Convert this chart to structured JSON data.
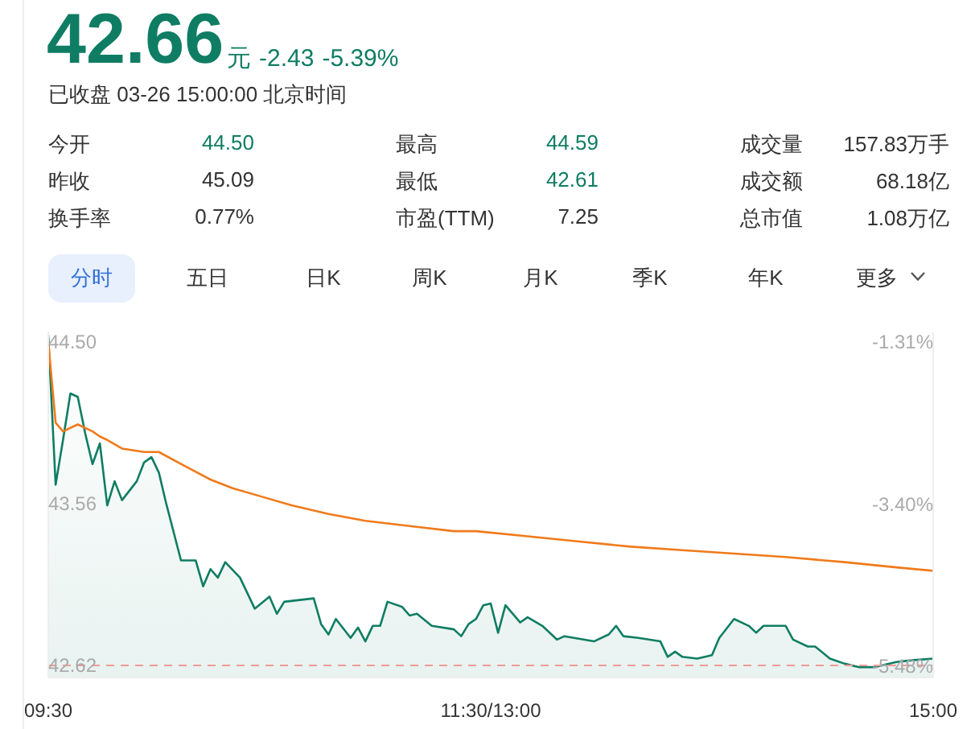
{
  "chart_data": {
    "type": "area",
    "title": "42.66",
    "subtitle": "已收盘 03-26 15:00:00 北京时间",
    "annotations": [
      "元",
      "-2.43",
      "-5.39%",
      "今开",
      "44.50",
      "最高",
      "44.59",
      "成交量",
      "157.83万手",
      "昨收",
      "45.09",
      "最低",
      "42.61",
      "成交额",
      "68.18亿",
      "换手率",
      "0.77%",
      "市盈(TTM)",
      "7.25",
      "总市值",
      "1.08万亿",
      "分时",
      "五日",
      "日K",
      "周K",
      "月K",
      "季K",
      "年K",
      "更多"
    ],
    "categories": [
      "09:30",
      null,
      null,
      null,
      null,
      null,
      null,
      null,
      null,
      null,
      null,
      null,
      null,
      null,
      null,
      null,
      null,
      null,
      null,
      null,
      null,
      null,
      null,
      null,
      null,
      null,
      null,
      null,
      null,
      null,
      null,
      null,
      null,
      null,
      null,
      null,
      null,
      null,
      null,
      null,
      null,
      null,
      null,
      null,
      null,
      null,
      null,
      null,
      null,
      null,
      null,
      null,
      null,
      null,
      null,
      null,
      null,
      null,
      null,
      null,
      "11:30/13:00",
      null,
      null,
      null,
      null,
      null,
      null,
      null,
      null,
      null,
      null,
      null,
      null,
      null,
      null,
      null,
      null,
      null,
      null,
      null,
      null,
      null,
      null,
      null,
      null,
      null,
      null,
      null,
      null,
      null,
      null,
      null,
      null,
      null,
      null,
      null,
      null,
      null,
      null,
      null,
      null,
      null,
      null,
      null,
      null,
      null,
      null,
      null,
      null,
      null,
      null,
      null,
      null,
      null,
      null,
      null,
      null,
      null,
      null,
      null,
      "15:00"
    ],
    "ylim": [
      42.55,
      44.56
    ],
    "yticks": [
      {
        "value": 44.5,
        "label": "44.50"
      },
      43.56,
      42.62
    ],
    "y2lim": [
      -5.63,
      -1.18
    ],
    "y2ticks": [
      {
        "value": -1.31,
        "label": "-1.31%"
      },
      {
        "value": -3.4,
        "label": "-3.40%"
      },
      {
        "value": -5.48,
        "label": "-5.48%"
      }
    ],
    "grid": false,
    "marker": "none",
    "line_style": "solid",
    "ref_lines": [
      {
        "axis": "y",
        "value": 42.62,
        "color": "#f29a96",
        "line_style": "dashed"
      }
    ],
    "series": [
      {
        "color": "#0f7d63",
        "values": [
          44.54,
          43.67,
          43.93,
          44.2,
          44.18,
          43.97,
          43.79,
          43.91,
          43.55,
          43.69,
          43.58,
          null,
          43.69,
          43.8,
          43.83,
          43.74,
          43.56,
          null,
          43.23,
          null,
          43.23,
          43.08,
          43.18,
          43.13,
          43.22,
          null,
          43.13,
          null,
          42.95,
          null,
          43.02,
          42.92,
          42.99,
          null,
          null,
          null,
          43.01,
          42.86,
          42.8,
          42.89,
          null,
          42.78,
          42.84,
          42.76,
          42.85,
          42.85,
          42.99,
          null,
          42.96,
          42.91,
          42.92,
          null,
          42.85,
          null,
          null,
          42.83,
          42.79,
          42.86,
          42.89,
          42.97,
          42.98,
          42.81,
          42.97,
          42.92,
          42.87,
          42.9,
          null,
          42.85,
          null,
          42.77,
          42.79,
          null,
          null,
          null,
          42.76,
          null,
          42.8,
          42.85,
          42.79,
          null,
          42.78,
          null,
          null,
          42.76,
          42.67,
          42.7,
          42.67,
          null,
          42.66,
          null,
          42.68,
          42.78,
          null,
          42.89,
          null,
          42.85,
          42.81,
          42.85,
          null,
          null,
          42.85,
          42.77,
          null,
          42.73,
          42.73,
          null,
          42.66,
          null,
          42.63,
          null,
          42.61,
          null,
          42.61,
          42.62,
          null,
          42.64,
          null,
          42.65,
          null,
          null,
          42.66
        ]
      },
      {
        "type": "line",
        "color": "#f07a1a",
        "values": [
          44.5,
          44.03,
          43.98,
          null,
          44.02,
          null,
          43.98,
          43.95,
          43.93,
          null,
          43.88,
          null,
          null,
          43.86,
          null,
          43.86,
          null,
          null,
          43.79,
          null,
          null,
          null,
          43.7,
          null,
          null,
          43.65,
          null,
          null,
          null,
          43.6,
          null,
          null,
          null,
          43.55,
          null,
          null,
          null,
          null,
          43.5,
          null,
          null,
          null,
          null,
          43.46,
          null,
          null,
          null,
          null,
          null,
          43.43,
          null,
          null,
          null,
          null,
          null,
          43.4,
          null,
          null,
          43.4,
          null,
          null,
          null,
          null,
          null,
          null,
          43.37,
          null,
          null,
          null,
          null,
          null,
          null,
          43.34,
          null,
          null,
          null,
          null,
          null,
          null,
          43.31,
          null,
          null,
          null,
          null,
          null,
          null,
          43.29,
          null,
          null,
          null,
          null,
          null,
          null,
          43.27,
          null,
          null,
          null,
          null,
          null,
          null,
          43.25,
          null,
          null,
          null,
          null,
          null,
          null,
          null,
          43.22,
          null,
          null,
          null,
          null,
          null,
          null,
          43.19,
          null,
          null,
          null,
          null,
          43.17
        ]
      }
    ]
  }
}
